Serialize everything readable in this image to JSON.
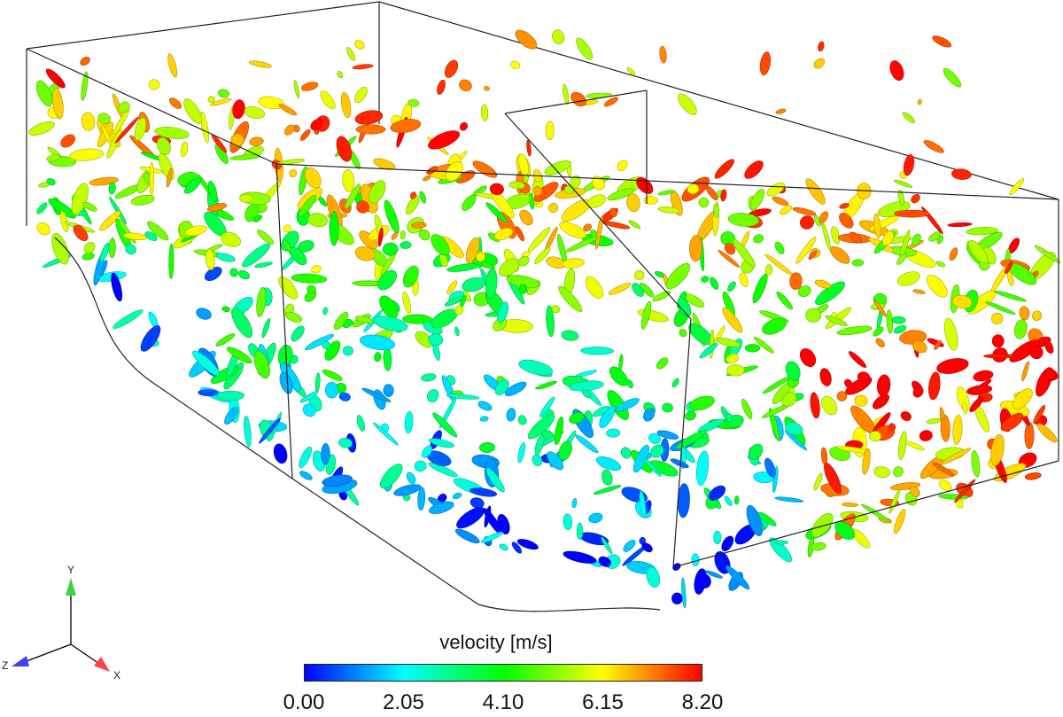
{
  "figure": {
    "colorbar": {
      "title": "velocity [m/s]",
      "min": 0.0,
      "max": 8.2,
      "ticks": [
        "0.00",
        "2.05",
        "4.10",
        "6.15",
        "8.20"
      ],
      "colormap": [
        "#0000ff",
        "#00ffff",
        "#00ff00",
        "#ffff00",
        "#ff0000"
      ]
    },
    "axes_triad": {
      "x": "X",
      "y": "Y",
      "z": "Z",
      "x_color": "#ff4040",
      "y_color": "#40d040",
      "z_color": "#4040ff"
    }
  }
}
